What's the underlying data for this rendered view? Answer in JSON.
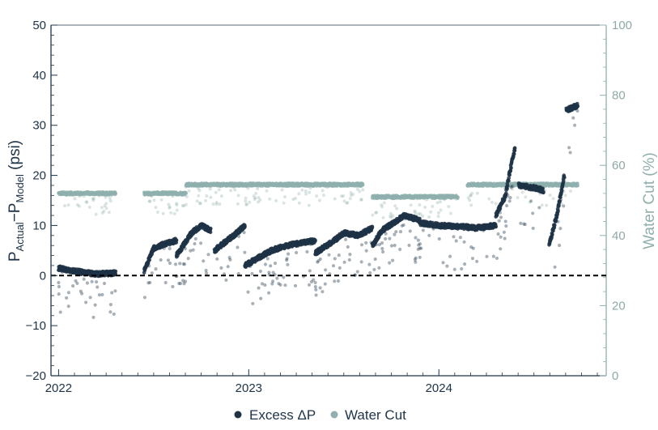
{
  "chart_data": {
    "type": "scatter",
    "x_axis": {
      "ticks": [
        "2022",
        "2023",
        "2024"
      ],
      "tick_values": [
        2022.0,
        2023.0,
        2024.0
      ],
      "range": [
        2021.96,
        2024.88
      ]
    },
    "y_left": {
      "label_main": "P",
      "label_sub1": "Actual",
      "label_mid": "−P",
      "label_sub2": "Model",
      "label_tail": " (psi)",
      "range": [
        -20,
        50
      ],
      "ticks": [
        50,
        40,
        30,
        20,
        10,
        0,
        -10,
        -20
      ],
      "tick_labels": [
        "50",
        "40",
        "30",
        "20",
        "10",
        "0",
        "−10",
        "−20"
      ]
    },
    "y_right": {
      "label": "Water Cut (%)",
      "range": [
        0,
        100
      ],
      "ticks": [
        100,
        80,
        60,
        40,
        20,
        0
      ],
      "tick_labels": [
        "100",
        "80",
        "60",
        "40",
        "20",
        "0"
      ]
    },
    "reference_line": {
      "y": 0,
      "style": "dashed"
    },
    "series": [
      {
        "name": "Excess ΔP",
        "axis": "left",
        "color": "#1f3347",
        "segments": [
          {
            "x": [
              2022.0,
              2022.1,
              2022.2,
              2022.3
            ],
            "y": [
              1.5,
              0.8,
              0.3,
              0.5
            ]
          },
          {
            "x": [
              2022.45,
              2022.5,
              2022.55,
              2022.62
            ],
            "y": [
              1.0,
              5.5,
              6.2,
              7.0
            ]
          },
          {
            "x": [
              2022.62,
              2022.7,
              2022.75,
              2022.8
            ],
            "y": [
              4.0,
              8.5,
              10.0,
              9.0
            ]
          },
          {
            "x": [
              2022.82,
              2022.92,
              2022.98
            ],
            "y": [
              5.0,
              8.0,
              10.0
            ]
          },
          {
            "x": [
              2022.98,
              2023.05,
              2023.12,
              2023.2,
              2023.28,
              2023.35
            ],
            "y": [
              2.0,
              3.5,
              5.0,
              6.0,
              6.5,
              7.0
            ]
          },
          {
            "x": [
              2023.35,
              2023.45,
              2023.5,
              2023.58,
              2023.65
            ],
            "y": [
              4.5,
              7.0,
              8.5,
              8.0,
              9.5
            ]
          },
          {
            "x": [
              2023.65,
              2023.7,
              2023.78,
              2023.82,
              2023.9
            ],
            "y": [
              6.0,
              9.0,
              11.0,
              12.0,
              11.0
            ]
          },
          {
            "x": [
              2023.9,
              2024.0,
              2024.1,
              2024.2,
              2024.3
            ],
            "y": [
              10.5,
              10.0,
              9.8,
              9.5,
              10.0
            ]
          },
          {
            "x": [
              2024.3,
              2024.35,
              2024.38,
              2024.4
            ],
            "y": [
              12.0,
              16.0,
              22.0,
              25.5
            ]
          },
          {
            "x": [
              2024.42,
              2024.5,
              2024.55
            ],
            "y": [
              18.0,
              17.5,
              17.0
            ]
          },
          {
            "x": [
              2024.58,
              2024.62,
              2024.66
            ],
            "y": [
              6.0,
              12.0,
              20.0
            ]
          },
          {
            "x": [
              2024.67,
              2024.7,
              2024.73
            ],
            "y": [
              33.0,
              33.5,
              34.0
            ]
          }
        ]
      },
      {
        "name": "Water Cut",
        "axis": "right",
        "color": "#8fb0ad",
        "segments": [
          {
            "x": [
              2022.0,
              2022.3
            ],
            "y": [
              52.0,
              52.0
            ]
          },
          {
            "x": [
              2022.45,
              2022.67
            ],
            "y": [
              52.0,
              52.0
            ]
          },
          {
            "x": [
              2022.67,
              2022.95
            ],
            "y": [
              54.5,
              54.5
            ]
          },
          {
            "x": [
              2022.95,
              2023.6
            ],
            "y": [
              54.5,
              54.5
            ]
          },
          {
            "x": [
              2023.65,
              2024.1
            ],
            "y": [
              51.0,
              51.0
            ]
          },
          {
            "x": [
              2024.15,
              2024.6
            ],
            "y": [
              54.5,
              54.5
            ]
          },
          {
            "x": [
              2024.6,
              2024.73
            ],
            "y": [
              54.5,
              54.5
            ]
          }
        ]
      }
    ],
    "legend": {
      "position": "bottom"
    },
    "grid": false
  }
}
